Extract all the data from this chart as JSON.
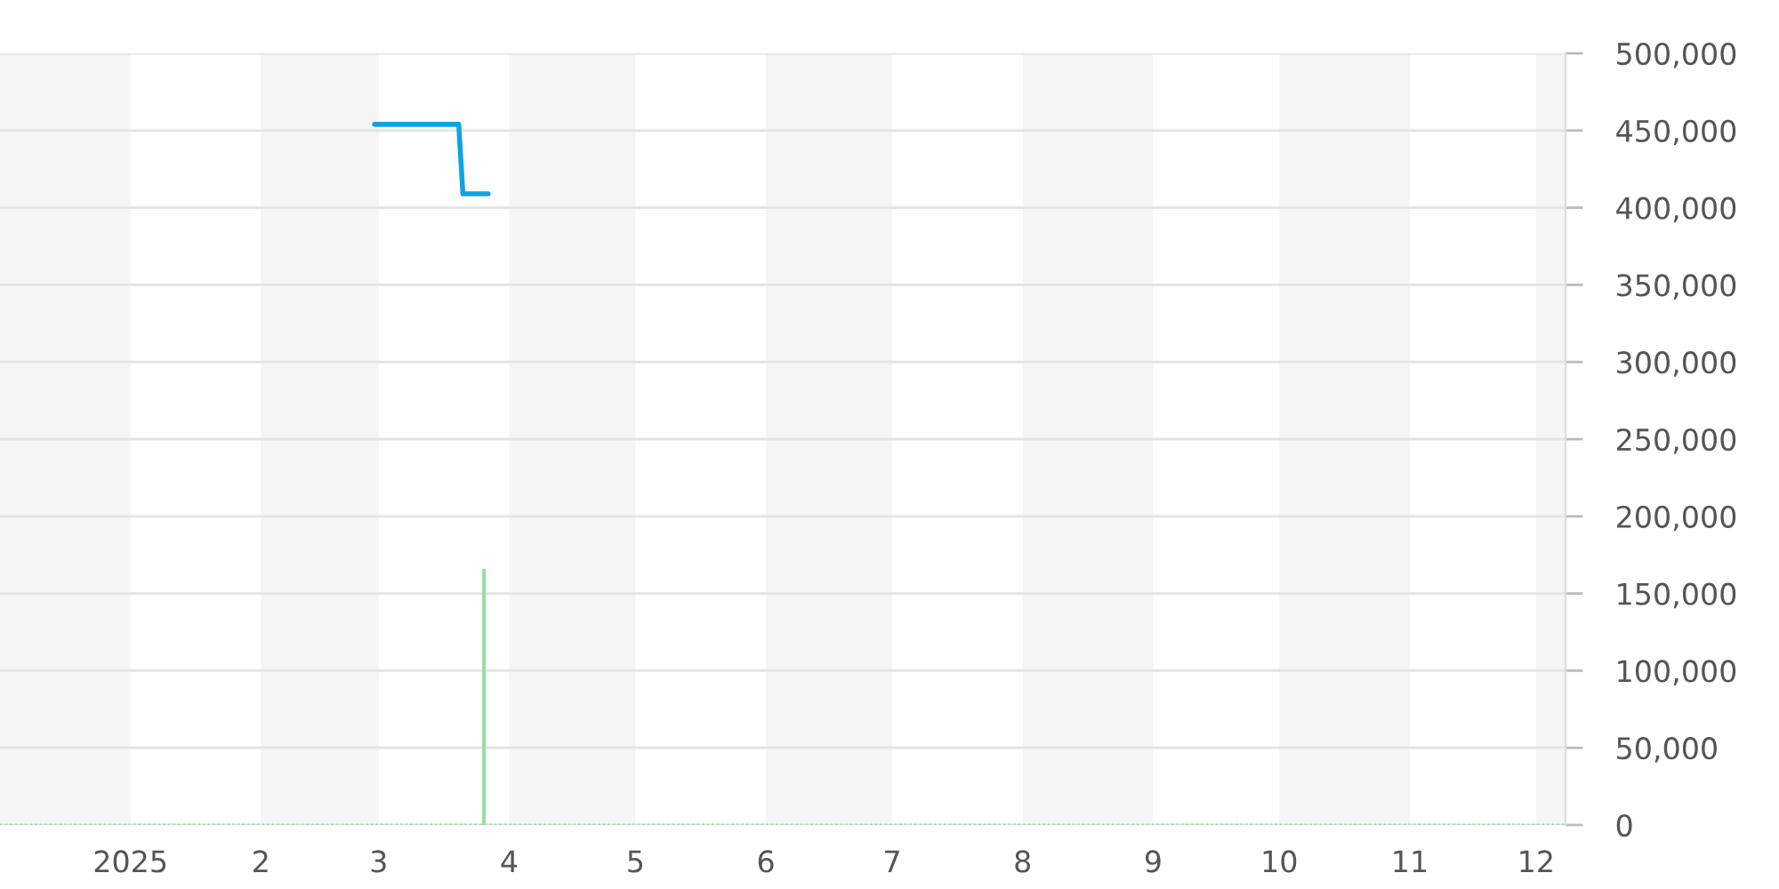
{
  "chart_data": {
    "type": "line",
    "xlim": [
      "2024-12-01",
      "2025-12-08"
    ],
    "xticks": [
      {
        "value": "2025-01-01",
        "label": "2025"
      },
      {
        "value": "2025-02-01",
        "label": "2"
      },
      {
        "value": "2025-03-01",
        "label": "3"
      },
      {
        "value": "2025-04-01",
        "label": "4"
      },
      {
        "value": "2025-05-01",
        "label": "5"
      },
      {
        "value": "2025-06-01",
        "label": "6"
      },
      {
        "value": "2025-07-01",
        "label": "7"
      },
      {
        "value": "2025-08-01",
        "label": "8"
      },
      {
        "value": "2025-09-01",
        "label": "9"
      },
      {
        "value": "2025-10-01",
        "label": "10"
      },
      {
        "value": "2025-11-01",
        "label": "11"
      },
      {
        "value": "2025-12-01",
        "label": "12"
      }
    ],
    "ylim": [
      0,
      500000
    ],
    "yticks": [
      0,
      {
        "value": 50000,
        "label": "50,000"
      },
      {
        "value": 100000,
        "label": "100,000"
      },
      {
        "value": 150000,
        "label": "150,000"
      },
      {
        "value": 200000,
        "label": "200,000"
      },
      {
        "value": 250000,
        "label": "250,000"
      },
      {
        "value": 300000,
        "label": "300,000"
      },
      {
        "value": 350000,
        "label": "350,000"
      },
      {
        "value": 400000,
        "label": "400,000"
      },
      {
        "value": 450000,
        "label": "450,000"
      },
      {
        "value": 500000,
        "label": "500,000"
      }
    ],
    "bands": [
      {
        "axis": "x",
        "from": "2024-12-01",
        "to": "2025-01-01",
        "color": "#f5f5f5"
      },
      {
        "axis": "x",
        "from": "2025-02-01",
        "to": "2025-03-01",
        "color": "#f5f5f5"
      },
      {
        "axis": "x",
        "from": "2025-04-01",
        "to": "2025-05-01",
        "color": "#f5f5f5"
      },
      {
        "axis": "x",
        "from": "2025-06-01",
        "to": "2025-07-01",
        "color": "#f5f5f5"
      },
      {
        "axis": "x",
        "from": "2025-08-01",
        "to": "2025-09-01",
        "color": "#f5f5f5"
      },
      {
        "axis": "x",
        "from": "2025-10-01",
        "to": "2025-11-01",
        "color": "#f5f5f5"
      },
      {
        "axis": "x",
        "from": "2025-12-01",
        "to": "2025-12-08",
        "color": "#f5f5f5"
      }
    ],
    "series": [
      {
        "type": "bar",
        "color": "#9cdca4",
        "x": [
          "2025-03-26"
        ],
        "values": [
          166000
        ]
      },
      {
        "color": "#9cdca4",
        "line_style": "dotted",
        "x": [
          "2024-12-01",
          "2025-12-08"
        ],
        "values": [
          0,
          0
        ]
      },
      {
        "color": "#10a3e3",
        "line_style": "solid",
        "x": [
          "2025-02-28",
          "2025-03-20",
          "2025-03-21",
          "2025-03-27"
        ],
        "values": [
          454000,
          454000,
          409000,
          409000
        ]
      }
    ],
    "grid": "y"
  }
}
